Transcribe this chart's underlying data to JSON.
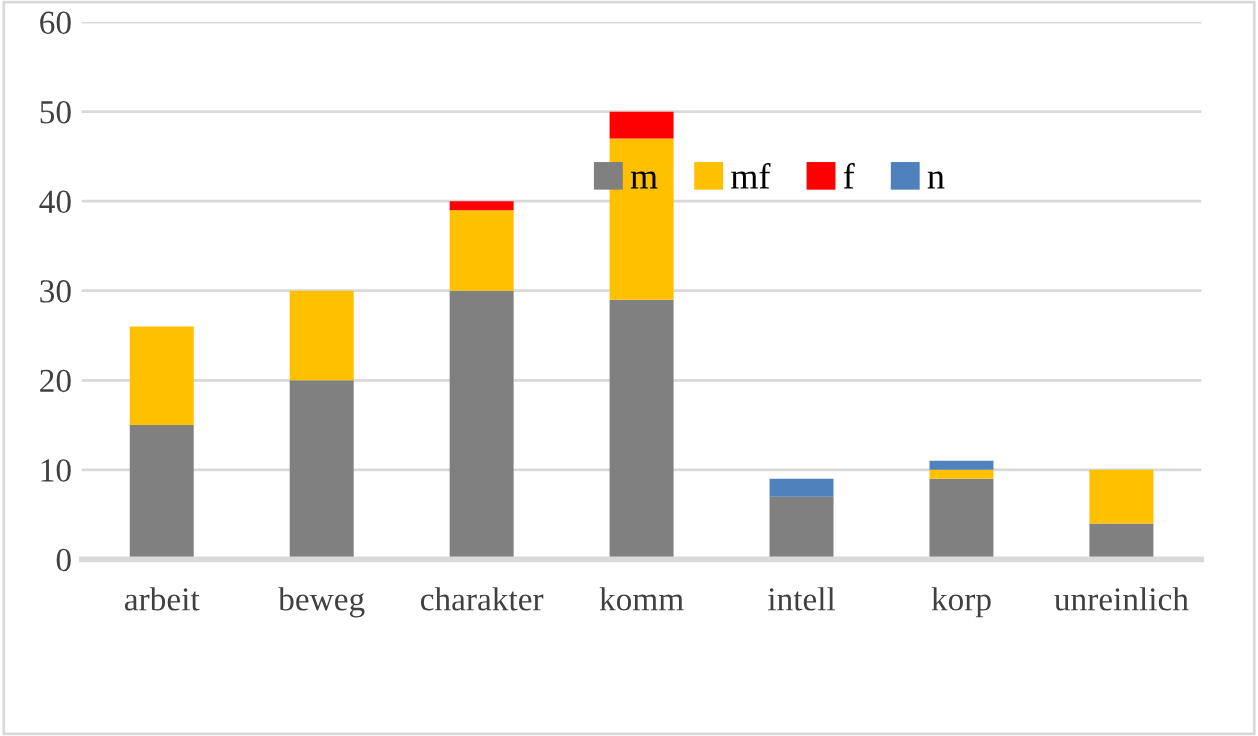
{
  "chart_data": {
    "type": "bar",
    "stacked": true,
    "categories": [
      "arbeit",
      "beweg",
      "charakter",
      "komm",
      "intell",
      "korp",
      "unreinlich"
    ],
    "series": [
      {
        "name": "m",
        "color": "#808080",
        "values": [
          15,
          20,
          30,
          29,
          7,
          9,
          4
        ]
      },
      {
        "name": "mf",
        "color": "#ffc000",
        "values": [
          11,
          10,
          9,
          18,
          0,
          1,
          6
        ]
      },
      {
        "name": "f",
        "color": "#ff0000",
        "values": [
          0,
          0,
          1,
          3,
          0,
          0,
          0
        ]
      },
      {
        "name": "n",
        "color": "#4f81bd",
        "values": [
          0,
          0,
          0,
          0,
          2,
          1,
          0
        ]
      }
    ],
    "ylim": [
      0,
      60
    ],
    "yticks": [
      0,
      10,
      20,
      30,
      40,
      50,
      60
    ],
    "grid": "y",
    "legend": "top right"
  }
}
